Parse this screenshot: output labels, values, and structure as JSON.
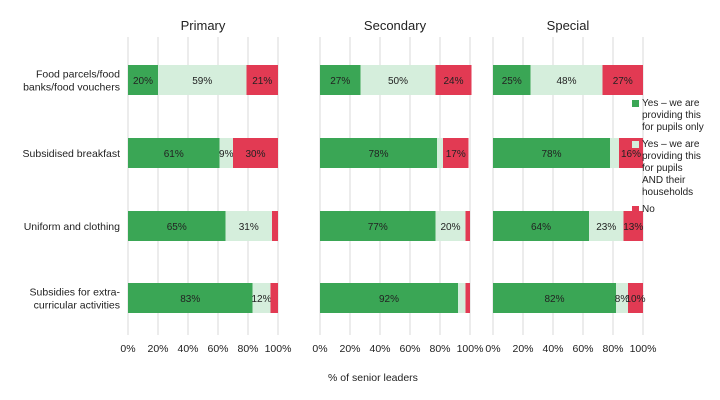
{
  "chart_data": {
    "type": "bar",
    "stacked": true,
    "orientation": "horizontal",
    "xlabel": "% of senior leaders",
    "xlim": [
      0,
      100
    ],
    "x_ticks": [
      "0%",
      "20%",
      "40%",
      "60%",
      "80%",
      "100%"
    ],
    "categories": [
      "Food parcels/food banks/food vouchers",
      "Subsidised breakfast",
      "Uniform and clothing",
      "Subsidies for extra-curricular activities"
    ],
    "category_label_lines": [
      [
        "Food parcels/food",
        "banks/food vouchers"
      ],
      [
        "Subsidised breakfast"
      ],
      [
        "Uniform and clothing"
      ],
      [
        "Subsidies for extra-",
        "curricular activities"
      ]
    ],
    "series": [
      {
        "name": "Yes – we are providing this for pupils only",
        "color": "#3aa655"
      },
      {
        "name": "Yes – we are providing this for pupils AND their households",
        "color": "#d5eedc"
      },
      {
        "name": "No",
        "color": "#e23a53"
      }
    ],
    "legend_lines": [
      [
        "Yes – we are",
        "providing this",
        "for pupils only"
      ],
      [
        "Yes – we are",
        "providing this",
        "for pupils",
        "AND their",
        "households"
      ],
      [
        "No"
      ]
    ],
    "legend_position": "right",
    "grid": true,
    "panels": [
      {
        "title": "Primary",
        "values": [
          [
            20,
            59,
            21
          ],
          [
            61,
            9,
            30
          ],
          [
            65,
            31,
            4
          ],
          [
            83,
            12,
            5
          ]
        ],
        "labels": [
          [
            "20%",
            "59%",
            "21%"
          ],
          [
            "61%",
            "9%",
            "30%"
          ],
          [
            "65%",
            "31%",
            ""
          ],
          [
            "83%",
            "12%",
            ""
          ]
        ]
      },
      {
        "title": "Secondary",
        "values": [
          [
            27,
            50,
            24
          ],
          [
            78,
            4,
            17
          ],
          [
            77,
            20,
            3
          ],
          [
            92,
            5,
            3
          ]
        ],
        "labels": [
          [
            "27%",
            "50%",
            "24%"
          ],
          [
            "78%",
            "",
            "17%"
          ],
          [
            "77%",
            "20%",
            ""
          ],
          [
            "92%",
            "",
            ""
          ]
        ]
      },
      {
        "title": "Special",
        "values": [
          [
            25,
            48,
            27
          ],
          [
            78,
            6,
            16
          ],
          [
            64,
            23,
            13
          ],
          [
            82,
            8,
            10
          ]
        ],
        "labels": [
          [
            "25%",
            "48%",
            "27%"
          ],
          [
            "78%",
            "",
            "16%"
          ],
          [
            "64%",
            "23%",
            "13%"
          ],
          [
            "82%",
            "8%",
            "10%"
          ]
        ]
      }
    ]
  }
}
